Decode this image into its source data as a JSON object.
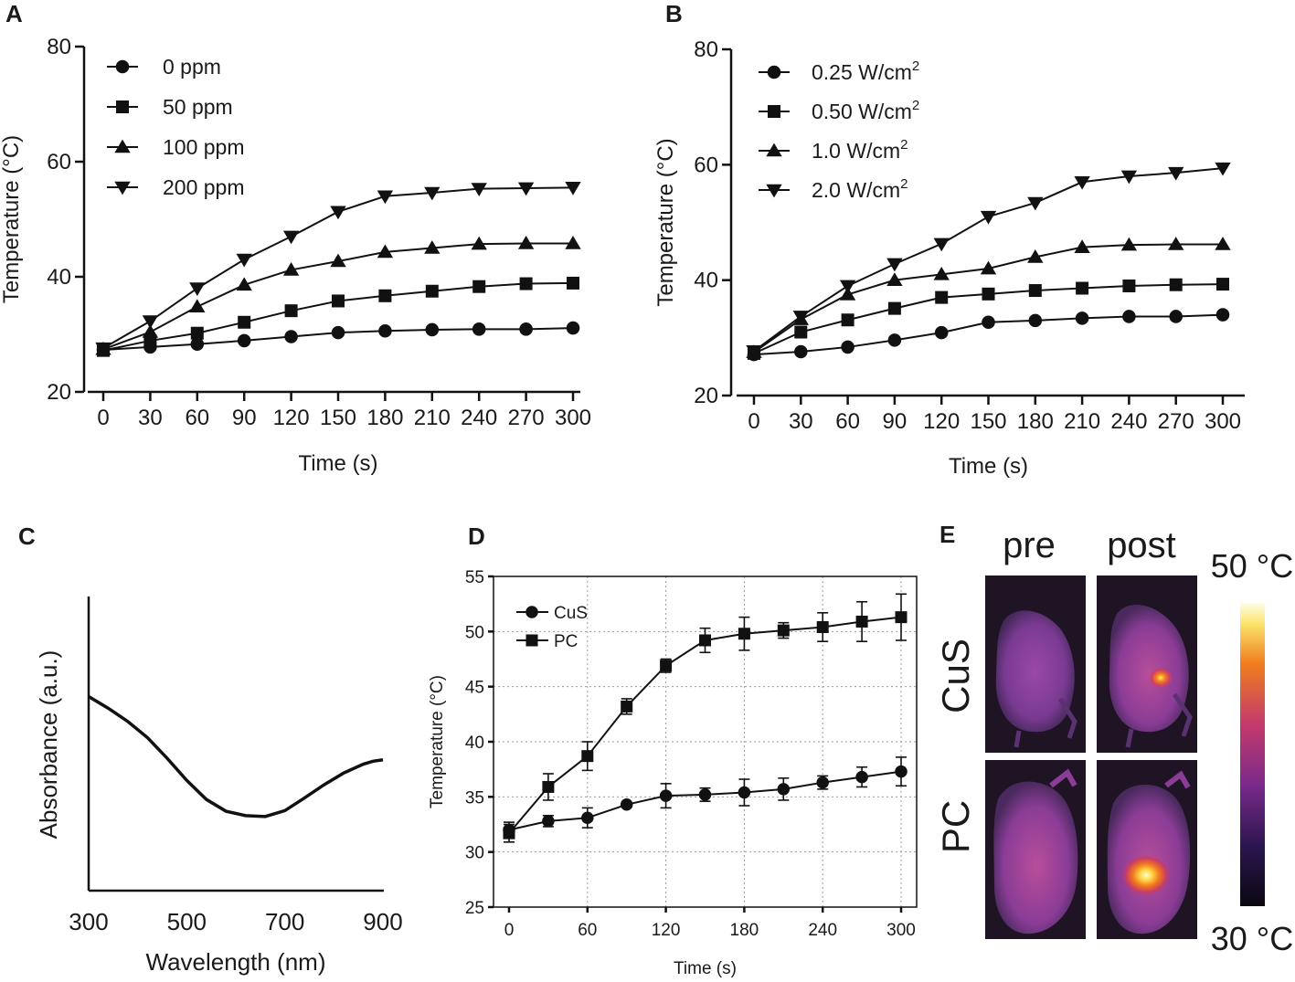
{
  "chart_data": [
    {
      "panel": "A",
      "type": "line",
      "xlabel": "Time (s)",
      "ylabel": "Temperature (°C)",
      "xlim": [
        0,
        300
      ],
      "ylim": [
        20,
        80
      ],
      "xticks": [
        0,
        30,
        60,
        90,
        120,
        150,
        180,
        210,
        240,
        270,
        300
      ],
      "yticks": [
        20,
        40,
        60,
        80
      ],
      "legend_position": "top-left",
      "x": [
        0,
        30,
        60,
        90,
        120,
        150,
        180,
        210,
        240,
        270,
        300
      ],
      "series": [
        {
          "name": "0 ppm",
          "marker": "circle",
          "values": [
            27.3,
            27.8,
            28.3,
            28.9,
            29.6,
            30.3,
            30.6,
            30.8,
            30.9,
            30.9,
            31.1
          ]
        },
        {
          "name": "50 ppm",
          "marker": "square",
          "values": [
            27.2,
            28.9,
            30.2,
            32.1,
            34.1,
            35.8,
            36.7,
            37.5,
            38.3,
            38.8,
            38.9
          ]
        },
        {
          "name": "100 ppm",
          "marker": "triangle-up",
          "values": [
            27.4,
            30.4,
            34.8,
            38.6,
            41.2,
            42.7,
            44.3,
            45.0,
            45.7,
            45.8,
            45.8
          ]
        },
        {
          "name": "200 ppm",
          "marker": "triangle-down",
          "values": [
            27.6,
            32.3,
            38.0,
            43.0,
            47.0,
            51.3,
            54.0,
            54.6,
            55.3,
            55.4,
            55.5
          ]
        }
      ]
    },
    {
      "panel": "B",
      "type": "line",
      "xlabel": "Time (s)",
      "ylabel": "Temperature (°C)",
      "xlim": [
        0,
        300
      ],
      "ylim": [
        20,
        80
      ],
      "xticks": [
        0,
        30,
        60,
        90,
        120,
        150,
        180,
        210,
        240,
        270,
        300
      ],
      "yticks": [
        20,
        40,
        60,
        80
      ],
      "legend_position": "top-left",
      "x": [
        0,
        30,
        60,
        90,
        120,
        150,
        180,
        210,
        240,
        270,
        300
      ],
      "series": [
        {
          "name": "0.25 W/cm",
          "sup": "2",
          "marker": "circle",
          "values": [
            27.1,
            27.6,
            28.4,
            29.6,
            30.9,
            32.7,
            33.0,
            33.4,
            33.7,
            33.7,
            34.0
          ]
        },
        {
          "name": "0.50 W/cm",
          "sup": "2",
          "marker": "square",
          "values": [
            27.3,
            31.0,
            33.1,
            35.1,
            37.0,
            37.6,
            38.2,
            38.6,
            39.0,
            39.2,
            39.3
          ]
        },
        {
          "name": "1.0 W/cm",
          "sup": "2",
          "marker": "triangle-up",
          "values": [
            27.5,
            33.2,
            37.5,
            40.0,
            41.0,
            42.0,
            44.0,
            45.7,
            46.1,
            46.2,
            46.2
          ]
        },
        {
          "name": "2.0 W/cm",
          "sup": "2",
          "marker": "triangle-down",
          "values": [
            27.7,
            33.7,
            39.0,
            42.8,
            46.3,
            51.0,
            53.4,
            57.0,
            58.0,
            58.6,
            59.4
          ]
        }
      ]
    },
    {
      "panel": "C",
      "type": "line",
      "xlabel": "Wavelength (nm)",
      "ylabel": "Absorbance (a.u.)",
      "xlim": [
        300,
        900
      ],
      "ylim": [
        0,
        1
      ],
      "xticks": [
        300,
        500,
        700,
        900
      ],
      "x": [
        300,
        340,
        380,
        420,
        460,
        500,
        540,
        580,
        620,
        660,
        700,
        740,
        780,
        820,
        860,
        880,
        900
      ],
      "values": [
        0.66,
        0.62,
        0.575,
        0.52,
        0.45,
        0.375,
        0.31,
        0.27,
        0.255,
        0.252,
        0.272,
        0.315,
        0.36,
        0.4,
        0.43,
        0.44,
        0.445
      ]
    },
    {
      "panel": "D",
      "type": "line",
      "xlabel": "Time (s)",
      "ylabel": "Temperature (°C)",
      "xlim": [
        0,
        300
      ],
      "ylim": [
        25,
        55
      ],
      "xticks": [
        0,
        60,
        120,
        180,
        240,
        300
      ],
      "yticks": [
        25,
        30,
        35,
        40,
        45,
        50,
        55
      ],
      "grid": true,
      "legend_position": "top-left",
      "x": [
        0,
        30,
        60,
        90,
        120,
        150,
        180,
        210,
        240,
        270,
        300
      ],
      "series": [
        {
          "name": "CuS",
          "marker": "circle",
          "values": [
            32.0,
            32.8,
            33.1,
            34.3,
            35.1,
            35.2,
            35.4,
            35.7,
            36.3,
            36.8,
            37.3
          ],
          "errors": [
            0.7,
            0.5,
            0.9,
            0.2,
            1.1,
            0.6,
            1.2,
            1.0,
            0.6,
            0.9,
            1.3
          ]
        },
        {
          "name": "PC",
          "marker": "square",
          "values": [
            31.7,
            35.9,
            38.7,
            43.2,
            46.9,
            49.2,
            49.8,
            50.1,
            50.4,
            50.9,
            51.3
          ],
          "errors": [
            0.8,
            1.2,
            1.3,
            0.7,
            0.6,
            1.1,
            1.5,
            0.7,
            1.3,
            1.8,
            2.1
          ]
        }
      ]
    }
  ],
  "panel_e": {
    "letter": "E",
    "col_labels": [
      "pre",
      "post"
    ],
    "row_labels": [
      "CuS",
      "PC"
    ],
    "scale_max": "50 °C",
    "scale_min": "30 °C"
  },
  "colors": {
    "ink": "#111111",
    "ir_background": "#1f1424"
  }
}
